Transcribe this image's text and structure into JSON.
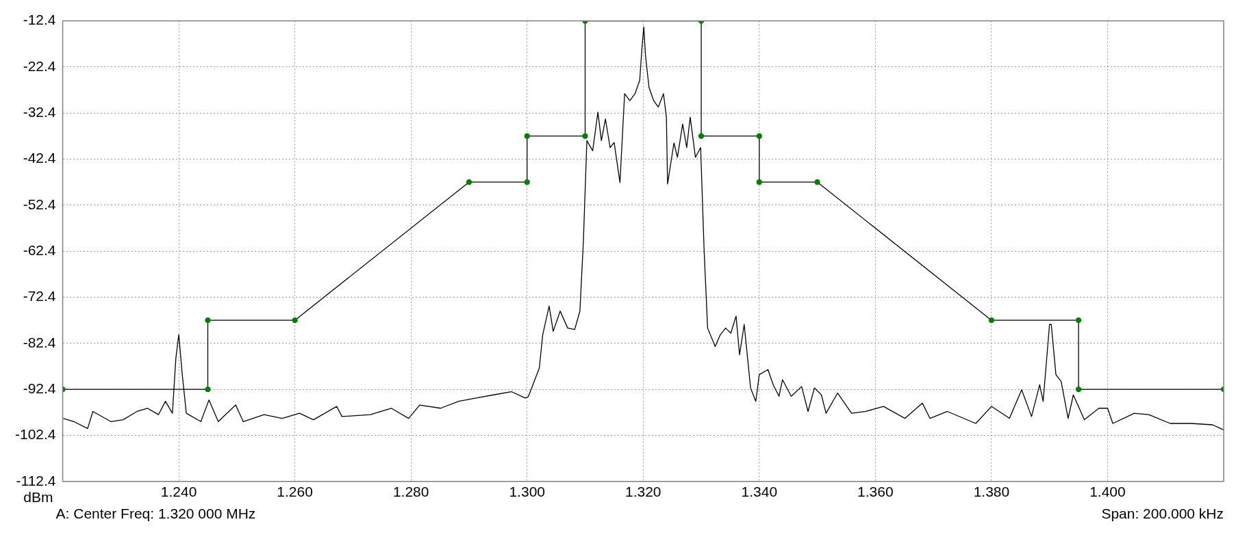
{
  "chart_data": {
    "type": "line",
    "ylabel": "dBm",
    "annotations": [
      "A: Center Freq: 1.320 000 MHz",
      "Span: 200.000 kHz"
    ],
    "xlim": [
      1.22,
      1.42
    ],
    "xticks": [
      {
        "value": 1.24,
        "label": "1.240"
      },
      {
        "value": 1.26,
        "label": "1.260"
      },
      {
        "value": 1.28,
        "label": "1.280"
      },
      {
        "value": 1.3,
        "label": "1.300"
      },
      {
        "value": 1.32,
        "label": "1.320"
      },
      {
        "value": 1.34,
        "label": "1.340"
      },
      {
        "value": 1.36,
        "label": "1.360"
      },
      {
        "value": 1.38,
        "label": "1.380"
      },
      {
        "value": 1.4,
        "label": "1.400"
      }
    ],
    "ylim": [
      -112.4,
      -12.4
    ],
    "yticks": [
      -112.4,
      -102.4,
      -92.4,
      -82.4,
      -72.4,
      -62.4,
      -52.4,
      -42.4,
      -32.4,
      -22.4,
      -12.4
    ],
    "grid": true,
    "line_style": "solid",
    "series": [
      {
        "color": "#000000",
        "marker": "none",
        "x": [
          1.2201,
          1.2219,
          1.2243,
          1.2252,
          1.2283,
          1.2304,
          1.2328,
          1.2346,
          1.2365,
          1.2377,
          1.2389,
          1.2395,
          1.24,
          1.2406,
          1.2413,
          1.2438,
          1.2452,
          1.2468,
          1.2498,
          1.2511,
          1.2547,
          1.2578,
          1.2608,
          1.2632,
          1.2672,
          1.2681,
          1.273,
          1.2766,
          1.2796,
          1.2815,
          1.2851,
          1.2882,
          1.2912,
          1.2942,
          1.2973,
          1.2997,
          1.3002,
          1.3021,
          1.3027,
          1.3038,
          1.3045,
          1.3057,
          1.307,
          1.3082,
          1.3091,
          1.3097,
          1.3103,
          1.3113,
          1.3122,
          1.3128,
          1.3135,
          1.3143,
          1.315,
          1.316,
          1.3168,
          1.3177,
          1.3186,
          1.3194,
          1.3198,
          1.3201,
          1.3204,
          1.321,
          1.3218,
          1.3226,
          1.3235,
          1.324,
          1.3242,
          1.3253,
          1.3259,
          1.3268,
          1.3275,
          1.3281,
          1.329,
          1.3299,
          1.3305,
          1.3311,
          1.3324,
          1.3333,
          1.3342,
          1.3351,
          1.336,
          1.3366,
          1.3374,
          1.3385,
          1.3394,
          1.34,
          1.3415,
          1.3424,
          1.3434,
          1.344,
          1.3455,
          1.3473,
          1.3484,
          1.3495,
          1.3507,
          1.3515,
          1.3535,
          1.3559,
          1.3583,
          1.3614,
          1.3651,
          1.3681,
          1.3694,
          1.3724,
          1.3773,
          1.38,
          1.3831,
          1.3852,
          1.3869,
          1.3883,
          1.3889,
          1.39,
          1.3903,
          1.3911,
          1.392,
          1.3932,
          1.3941,
          1.396,
          1.3985,
          1.4,
          1.4009,
          1.4046,
          1.4071,
          1.4108,
          1.4144,
          1.4181,
          1.42
        ],
        "values": [
          -98.7,
          -99.4,
          -100.9,
          -97.2,
          -99.4,
          -99.0,
          -97.2,
          -96.5,
          -97.9,
          -95.0,
          -97.6,
          -85.6,
          -80.5,
          -89.2,
          -97.6,
          -99.4,
          -94.7,
          -99.4,
          -95.8,
          -99.4,
          -97.9,
          -98.7,
          -97.6,
          -99.0,
          -96.1,
          -98.3,
          -97.9,
          -96.5,
          -98.7,
          -95.8,
          -96.5,
          -95.0,
          -94.3,
          -93.6,
          -92.9,
          -94.3,
          -94.0,
          -87.8,
          -80.5,
          -74.3,
          -79.8,
          -75.4,
          -79.1,
          -79.4,
          -75.4,
          -60.2,
          -38.4,
          -40.6,
          -32.2,
          -38.4,
          -33.7,
          -39.9,
          -38.8,
          -47.5,
          -28.2,
          -29.7,
          -28.2,
          -25.3,
          -18.1,
          -13.7,
          -19.9,
          -26.8,
          -29.7,
          -31.1,
          -28.2,
          -33.3,
          -47.8,
          -38.9,
          -42.0,
          -34.8,
          -39.9,
          -33.3,
          -42.0,
          -39.9,
          -62.4,
          -79.1,
          -83.1,
          -80.5,
          -79.1,
          -80.2,
          -76.5,
          -84.9,
          -78.3,
          -92.1,
          -95.0,
          -89.2,
          -88.1,
          -91.4,
          -93.9,
          -90.3,
          -93.9,
          -91.8,
          -97.2,
          -92.1,
          -93.6,
          -97.6,
          -93.2,
          -97.6,
          -97.2,
          -96.1,
          -98.7,
          -95.4,
          -98.7,
          -97.2,
          -99.8,
          -96.1,
          -98.7,
          -92.5,
          -98.3,
          -91.4,
          -95.0,
          -78.3,
          -78.3,
          -89.2,
          -90.7,
          -98.7,
          -93.6,
          -99.0,
          -96.5,
          -96.5,
          -99.8,
          -97.6,
          -97.9,
          -99.8,
          -99.8,
          -100.1,
          -101.2
        ]
      },
      {
        "color": "#000000",
        "colors": [
          "#008000",
          "#008000",
          "#008000",
          "#008000",
          "#008000",
          "#008000",
          "#008000",
          "#008000",
          "#008000",
          "#008000",
          "#008000",
          "#008000",
          "#008000",
          "#008000",
          "#008000",
          "#008000",
          "#008000",
          "#008000"
        ],
        "marker": "circle",
        "x": [
          1.22,
          1.245,
          1.245,
          1.26,
          1.29,
          1.3,
          1.3,
          1.31,
          1.31,
          1.33,
          1.33,
          1.34,
          1.34,
          1.35,
          1.38,
          1.395,
          1.395,
          1.42
        ],
        "values": [
          -92.4,
          -92.4,
          -77.4,
          -77.4,
          -47.4,
          -47.4,
          -37.4,
          -37.4,
          -12.4,
          -12.4,
          -37.4,
          -37.4,
          -47.4,
          -47.4,
          -77.4,
          -77.4,
          -92.4,
          -92.4
        ]
      }
    ]
  }
}
